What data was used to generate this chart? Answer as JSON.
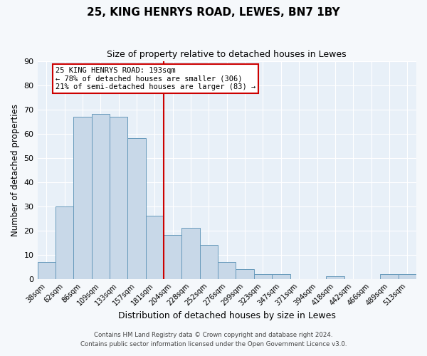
{
  "title": "25, KING HENRYS ROAD, LEWES, BN7 1BY",
  "subtitle": "Size of property relative to detached houses in Lewes",
  "xlabel": "Distribution of detached houses by size in Lewes",
  "ylabel": "Number of detached properties",
  "bar_labels": [
    "38sqm",
    "62sqm",
    "86sqm",
    "109sqm",
    "133sqm",
    "157sqm",
    "181sqm",
    "204sqm",
    "228sqm",
    "252sqm",
    "276sqm",
    "299sqm",
    "323sqm",
    "347sqm",
    "371sqm",
    "394sqm",
    "418sqm",
    "442sqm",
    "466sqm",
    "489sqm",
    "513sqm"
  ],
  "bar_values": [
    7,
    30,
    67,
    68,
    67,
    58,
    26,
    18,
    21,
    14,
    7,
    4,
    2,
    2,
    0,
    0,
    1,
    0,
    0,
    2,
    2
  ],
  "bar_color": "#c8d8e8",
  "bar_edge_color": "#6699bb",
  "vline_color": "#cc0000",
  "annotation_title": "25 KING HENRYS ROAD: 193sqm",
  "annotation_line1": "← 78% of detached houses are smaller (306)",
  "annotation_line2": "21% of semi-detached houses are larger (83) →",
  "annotation_box_color": "#ffffff",
  "annotation_box_edge": "#cc0000",
  "ylim": [
    0,
    90
  ],
  "yticks": [
    0,
    10,
    20,
    30,
    40,
    50,
    60,
    70,
    80,
    90
  ],
  "footer1": "Contains HM Land Registry data © Crown copyright and database right 2024.",
  "footer2": "Contains public sector information licensed under the Open Government Licence v3.0.",
  "background_color": "#f5f8fb",
  "plot_background_color": "#e8f0f8"
}
